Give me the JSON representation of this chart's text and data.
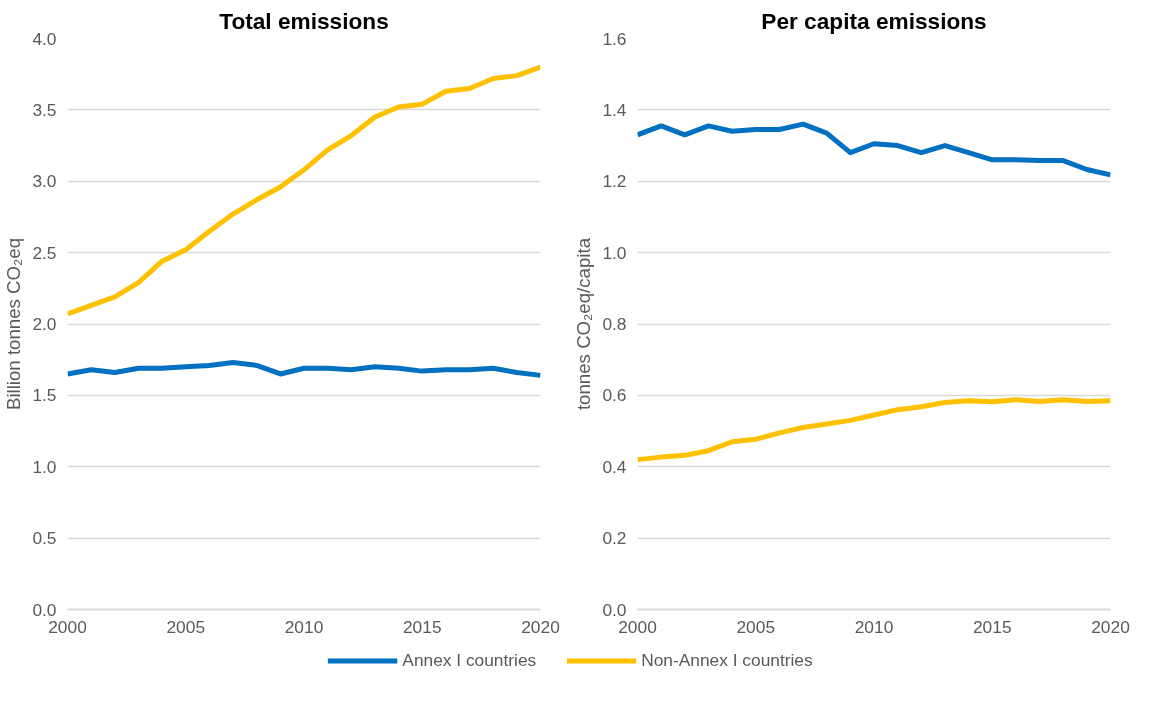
{
  "chart_data": [
    {
      "type": "line",
      "title": "Total emissions",
      "ylabel": "Billion tonnes CO₂eq",
      "x": [
        2000,
        2001,
        2002,
        2003,
        2004,
        2005,
        2006,
        2007,
        2008,
        2009,
        2010,
        2011,
        2012,
        2013,
        2014,
        2015,
        2016,
        2017,
        2018,
        2019,
        2020
      ],
      "series": [
        {
          "name": "Annex I countries",
          "color": "#0070c0",
          "values": [
            1.65,
            1.68,
            1.66,
            1.69,
            1.69,
            1.7,
            1.71,
            1.73,
            1.71,
            1.65,
            1.69,
            1.69,
            1.68,
            1.7,
            1.69,
            1.67,
            1.68,
            1.68,
            1.69,
            1.66,
            1.64
          ]
        },
        {
          "name": "Non-Annex I countries",
          "color": "#ffc000",
          "values": [
            2.07,
            2.13,
            2.19,
            2.29,
            2.44,
            2.52,
            2.65,
            2.77,
            2.87,
            2.96,
            3.08,
            3.22,
            3.32,
            3.45,
            3.52,
            3.54,
            3.63,
            3.65,
            3.72,
            3.74,
            3.8
          ]
        }
      ],
      "xlim": [
        2000,
        2020
      ],
      "xticks": [
        2000,
        2005,
        2010,
        2015,
        2020
      ],
      "ylim": [
        0,
        4
      ],
      "yticks": [
        {
          "value": 0,
          "label": "0.0"
        },
        0.5,
        {
          "value": 1,
          "label": "1.0"
        },
        1.5,
        {
          "value": 2,
          "label": "2.0"
        },
        2.5,
        {
          "value": 3,
          "label": "3.0"
        },
        3.5,
        {
          "value": 4,
          "label": "4.0"
        }
      ],
      "grid": "y",
      "legend": "bottom",
      "marker": "none",
      "line_style": "solid"
    },
    {
      "type": "line",
      "title": "Per capita emissions",
      "ylabel": "tonnes CO₂eq/capita",
      "x": [
        2000,
        2001,
        2002,
        2003,
        2004,
        2005,
        2006,
        2007,
        2008,
        2009,
        2010,
        2011,
        2012,
        2013,
        2014,
        2015,
        2016,
        2017,
        2018,
        2019,
        2020
      ],
      "series": [
        {
          "color": "#0070c0",
          "values": [
            1.33,
            1.355,
            1.33,
            1.355,
            1.34,
            1.345,
            1.345,
            1.36,
            1.335,
            1.28,
            1.305,
            1.3,
            1.28,
            1.3,
            1.28,
            1.26,
            1.26,
            1.258,
            1.258,
            1.233,
            1.218
          ]
        },
        {
          "color": "#ffc000",
          "values": [
            0.42,
            0.427,
            0.432,
            0.445,
            0.47,
            0.477,
            0.495,
            0.51,
            0.52,
            0.53,
            0.545,
            0.56,
            0.568,
            0.58,
            0.585,
            0.582,
            0.588,
            0.583,
            0.588,
            0.583,
            0.585
          ]
        }
      ],
      "xlim": [
        2000,
        2020
      ],
      "xticks": [
        2000,
        2005,
        2010,
        2015,
        2020
      ],
      "ylim": [
        0,
        1.6
      ],
      "yticks": [
        {
          "value": 0,
          "label": "0.0"
        },
        0.2,
        0.4,
        0.6,
        0.8,
        {
          "value": 1,
          "label": "1.0"
        },
        1.2,
        1.4,
        1.6
      ],
      "grid": "y",
      "marker": "none",
      "line_style": "solid"
    }
  ]
}
